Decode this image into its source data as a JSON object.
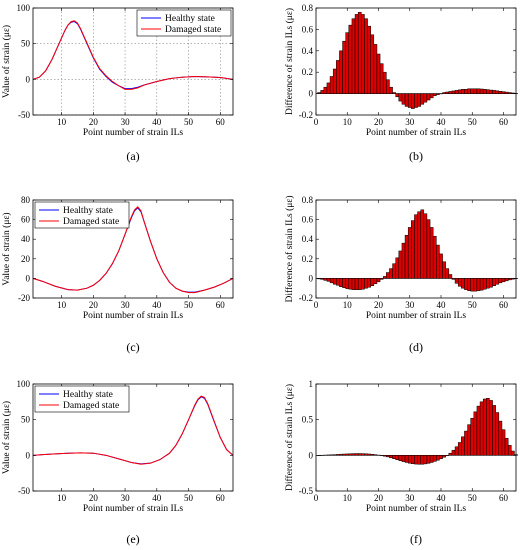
{
  "chart_data": [
    {
      "id": "a",
      "panel_label": "(a)",
      "type": "line",
      "xlabel": "Point number of strain ILs",
      "ylabel": "Value of strain (με)",
      "xlim": [
        1,
        64
      ],
      "ylim": [
        -50,
        100
      ],
      "xticks": [
        10,
        20,
        30,
        40,
        50,
        60
      ],
      "yticks": [
        -50,
        0,
        50,
        100
      ],
      "grid": true,
      "legend": "top-right",
      "series": [
        {
          "name": "Healthy state",
          "color": "#0000ff",
          "x": [
            1,
            3,
            5,
            7,
            9,
            11,
            12,
            13,
            14,
            15,
            16,
            18,
            20,
            22,
            24,
            26,
            28,
            30,
            32,
            34,
            36,
            40,
            44,
            48,
            52,
            56,
            60,
            64
          ],
          "y": [
            0,
            3,
            12,
            28,
            48,
            68,
            76,
            80,
            81,
            78,
            70,
            50,
            30,
            14,
            4,
            -4,
            -9,
            -13,
            -13,
            -11,
            -8,
            -3,
            1,
            3,
            4,
            3.5,
            2.5,
            0
          ]
        },
        {
          "name": "Damaged state",
          "color": "#ff0000",
          "x": [
            1,
            3,
            5,
            7,
            9,
            11,
            12,
            13,
            14,
            15,
            16,
            18,
            20,
            22,
            24,
            26,
            28,
            30,
            32,
            34,
            36,
            40,
            44,
            48,
            52,
            56,
            60,
            64
          ],
          "y": [
            0,
            3,
            12,
            28,
            48,
            68,
            76,
            81,
            82,
            79,
            71,
            51,
            31,
            15,
            5,
            -3,
            -9,
            -14,
            -14,
            -12,
            -8,
            -3,
            1,
            3,
            4,
            3.5,
            2.5,
            0
          ]
        }
      ]
    },
    {
      "id": "b",
      "panel_label": "(b)",
      "type": "bar",
      "xlabel": "Point number of strain ILs",
      "ylabel": "Difference of strain ILs (με)",
      "xlim": [
        0,
        64
      ],
      "ylim": [
        -0.2,
        0.8
      ],
      "xticks": [
        0,
        10,
        20,
        30,
        40,
        50,
        60
      ],
      "yticks": [
        -0.2,
        0,
        0.2,
        0.4,
        0.6,
        0.8
      ],
      "grid": false,
      "bar_color": "#dd0000",
      "x_start": 1,
      "values": [
        0.01,
        0.03,
        0.06,
        0.1,
        0.16,
        0.23,
        0.31,
        0.4,
        0.49,
        0.57,
        0.64,
        0.7,
        0.74,
        0.76,
        0.74,
        0.7,
        0.63,
        0.55,
        0.46,
        0.37,
        0.28,
        0.2,
        0.13,
        0.06,
        0.01,
        -0.03,
        -0.07,
        -0.1,
        -0.12,
        -0.13,
        -0.14,
        -0.13,
        -0.12,
        -0.1,
        -0.08,
        -0.06,
        -0.04,
        -0.02,
        -0.01,
        0.0,
        0.01,
        0.015,
        0.02,
        0.025,
        0.03,
        0.035,
        0.04,
        0.04,
        0.045,
        0.045,
        0.045,
        0.045,
        0.043,
        0.04,
        0.037,
        0.033,
        0.03,
        0.026,
        0.022,
        0.018,
        0.014,
        0.01,
        0.006,
        0.003
      ]
    },
    {
      "id": "c",
      "panel_label": "(c)",
      "type": "line",
      "xlabel": "Point number of strain ILs",
      "ylabel": "Value of strain (με)",
      "xlim": [
        1,
        64
      ],
      "ylim": [
        -20,
        80
      ],
      "xticks": [
        10,
        20,
        30,
        40,
        50,
        60
      ],
      "yticks": [
        -20,
        0,
        20,
        40,
        60,
        80
      ],
      "grid": false,
      "legend": "top-left",
      "series": [
        {
          "name": "Healthy state",
          "color": "#0000ff",
          "x": [
            1,
            4,
            8,
            12,
            15,
            18,
            20,
            22,
            24,
            26,
            28,
            30,
            32,
            33,
            34,
            35,
            36,
            38,
            40,
            42,
            44,
            46,
            48,
            50,
            52,
            55,
            58,
            61,
            64
          ],
          "y": [
            0,
            -3,
            -8,
            -11.5,
            -12,
            -10,
            -7,
            -2,
            5,
            15,
            28,
            45,
            62,
            69,
            72,
            68,
            58,
            38,
            20,
            6,
            -4,
            -10,
            -13,
            -14,
            -14,
            -12,
            -9,
            -5,
            0
          ]
        },
        {
          "name": "Damaged state",
          "color": "#ff0000",
          "x": [
            1,
            4,
            8,
            12,
            15,
            18,
            20,
            22,
            24,
            26,
            28,
            30,
            32,
            33,
            34,
            35,
            36,
            38,
            40,
            42,
            44,
            46,
            48,
            50,
            52,
            55,
            58,
            61,
            64
          ],
          "y": [
            0,
            -3,
            -8,
            -11.5,
            -12,
            -10,
            -7,
            -2,
            5,
            15,
            28,
            45,
            63,
            70,
            73,
            69,
            58,
            38,
            20,
            6,
            -4,
            -10,
            -13,
            -14.5,
            -14.5,
            -12,
            -9,
            -5,
            0
          ]
        }
      ]
    },
    {
      "id": "d",
      "panel_label": "(d)",
      "type": "bar",
      "xlabel": "Point number of strain ILs",
      "ylabel": "Difference of strain ILs (με)",
      "xlim": [
        0,
        64
      ],
      "ylim": [
        -0.2,
        0.8
      ],
      "xticks": [
        0,
        10,
        20,
        30,
        40,
        50,
        60
      ],
      "yticks": [
        -0.2,
        0,
        0.2,
        0.4,
        0.6,
        0.8
      ],
      "grid": false,
      "bar_color": "#dd0000",
      "x_start": 1,
      "values": [
        -0.005,
        -0.01,
        -0.02,
        -0.03,
        -0.045,
        -0.06,
        -0.07,
        -0.085,
        -0.095,
        -0.105,
        -0.11,
        -0.115,
        -0.115,
        -0.115,
        -0.11,
        -0.1,
        -0.09,
        -0.075,
        -0.055,
        -0.035,
        -0.01,
        0.02,
        0.06,
        0.1,
        0.15,
        0.21,
        0.28,
        0.36,
        0.44,
        0.52,
        0.59,
        0.65,
        0.68,
        0.7,
        0.66,
        0.6,
        0.52,
        0.43,
        0.34,
        0.25,
        0.17,
        0.1,
        0.04,
        -0.01,
        -0.05,
        -0.08,
        -0.1,
        -0.115,
        -0.125,
        -0.13,
        -0.13,
        -0.125,
        -0.12,
        -0.11,
        -0.1,
        -0.09,
        -0.075,
        -0.06,
        -0.045,
        -0.035,
        -0.025,
        -0.015,
        -0.008,
        -0.003
      ]
    },
    {
      "id": "e",
      "panel_label": "(e)",
      "type": "line",
      "xlabel": "Point number of strain ILs",
      "ylabel": "Value of strain (με)",
      "xlim": [
        1,
        64
      ],
      "ylim": [
        -50,
        100
      ],
      "xticks": [
        10,
        20,
        30,
        40,
        50,
        60
      ],
      "yticks": [
        -50,
        0,
        50,
        100
      ],
      "grid": false,
      "legend": "top-left",
      "series": [
        {
          "name": "Healthy state",
          "color": "#0000ff",
          "x": [
            1,
            4,
            8,
            12,
            16,
            20,
            24,
            28,
            32,
            35,
            38,
            41,
            44,
            46,
            48,
            50,
            52,
            53,
            54,
            55,
            56,
            58,
            60,
            62,
            64
          ],
          "y": [
            0,
            1,
            2,
            3,
            3.5,
            3,
            0,
            -5,
            -10,
            -12,
            -11,
            -6,
            3,
            14,
            30,
            50,
            70,
            78,
            82,
            80,
            72,
            48,
            25,
            8,
            0
          ]
        },
        {
          "name": "Damaged state",
          "color": "#ff0000",
          "x": [
            1,
            4,
            8,
            12,
            16,
            20,
            24,
            28,
            32,
            35,
            38,
            41,
            44,
            46,
            48,
            50,
            52,
            53,
            54,
            55,
            56,
            58,
            60,
            62,
            64
          ],
          "y": [
            0,
            1,
            2,
            3,
            3.5,
            3,
            0,
            -5,
            -10,
            -12.5,
            -11,
            -6,
            3,
            14,
            30,
            50,
            71,
            79,
            83,
            81,
            73,
            49,
            25,
            8,
            0
          ]
        }
      ]
    },
    {
      "id": "f",
      "panel_label": "(f)",
      "type": "bar",
      "xlabel": "Point number of strain ILs",
      "ylabel": "Difference of strain ILs (με)",
      "xlim": [
        0,
        64
      ],
      "ylim": [
        -0.5,
        1
      ],
      "xticks": [
        0,
        10,
        20,
        30,
        40,
        50,
        60
      ],
      "yticks": [
        -0.5,
        0,
        0.5,
        1
      ],
      "grid": false,
      "bar_color": "#dd0000",
      "x_start": 1,
      "values": [
        0.0,
        0.002,
        0.004,
        0.006,
        0.008,
        0.01,
        0.013,
        0.016,
        0.018,
        0.02,
        0.022,
        0.024,
        0.025,
        0.025,
        0.024,
        0.022,
        0.019,
        0.015,
        0.01,
        0.004,
        -0.003,
        -0.012,
        -0.022,
        -0.035,
        -0.048,
        -0.062,
        -0.075,
        -0.088,
        -0.1,
        -0.11,
        -0.118,
        -0.123,
        -0.125,
        -0.125,
        -0.12,
        -0.112,
        -0.1,
        -0.085,
        -0.068,
        -0.048,
        -0.026,
        -0.003,
        0.03,
        0.07,
        0.12,
        0.18,
        0.26,
        0.34,
        0.43,
        0.52,
        0.61,
        0.69,
        0.75,
        0.79,
        0.8,
        0.77,
        0.7,
        0.6,
        0.48,
        0.36,
        0.24,
        0.14,
        0.06,
        0.01
      ]
    }
  ]
}
